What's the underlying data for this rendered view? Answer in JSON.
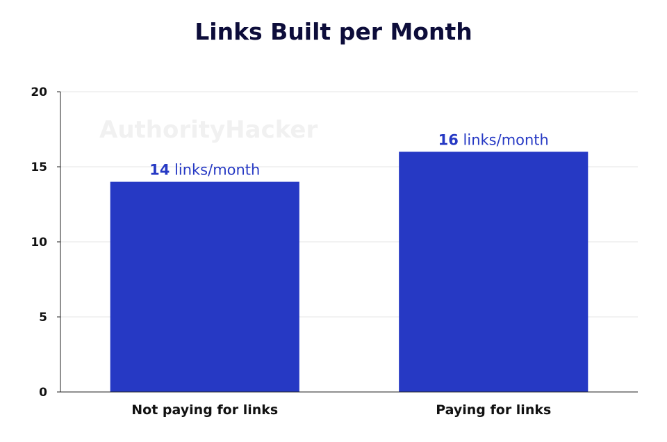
{
  "watermark": "AuthorityHacker",
  "colors": {
    "bar": "#2639c4",
    "label": "#2639c4",
    "title": "#0d0d3a",
    "grid": "#e6e6e6"
  },
  "chart_data": {
    "type": "bar",
    "title": "Links Built per Month",
    "xlabel": "",
    "ylabel": "",
    "categories": [
      "Not paying for links",
      "Paying for links"
    ],
    "values": [
      14,
      16
    ],
    "data_labels": [
      {
        "value": "14",
        "suffix": " links/month"
      },
      {
        "value": "16",
        "suffix": " links/month"
      }
    ],
    "ylim": [
      0,
      20
    ],
    "yticks": [
      0,
      5,
      10,
      15,
      20
    ],
    "grid": true,
    "legend": "none"
  }
}
